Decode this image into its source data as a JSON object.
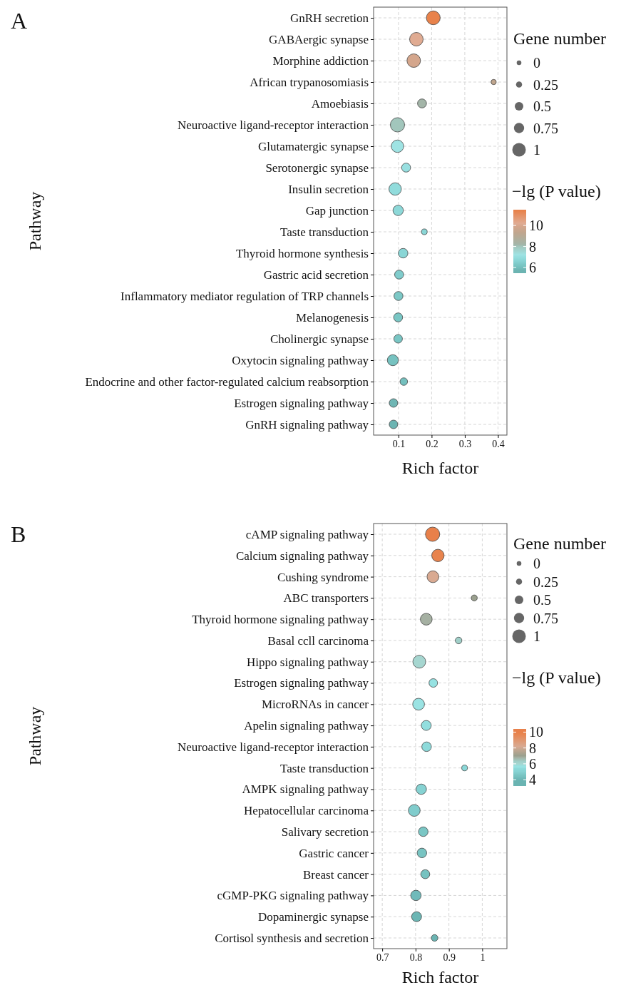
{
  "chart_data": [
    {
      "type": "bubble",
      "annotations": [
        "A"
      ],
      "orientation": "horizontal",
      "xlabel": "Rich factor",
      "ylabel": "Pathway",
      "legend_title": "Gene number",
      "clabel": "−lg (P value)",
      "grid": true,
      "categories": [
        "GnRH secretion",
        "GABAergic synapse",
        "Morphine addiction",
        "African trypanosomiasis",
        "Amoebiasis",
        "Neuroactive ligand-receptor interaction",
        "Glutamatergic synapse",
        "Serotonergic synapse",
        "Insulin secretion",
        "Gap junction",
        "Taste transduction",
        "Thyroid hormone synthesis",
        "Gastric acid secretion",
        "Inflammatory mediator regulation of TRP channels",
        "Melanogenesis",
        "Cholinergic synapse",
        "Oxytocin signaling pathway",
        "Endocrine and other factor-regulated calcium reabsorption",
        "Estrogen signaling pathway",
        "GnRH signaling pathway"
      ],
      "values": [
        0.205,
        0.154,
        0.146,
        0.387,
        0.171,
        0.097,
        0.097,
        0.123,
        0.09,
        0.099,
        0.178,
        0.114,
        0.102,
        0.1,
        0.099,
        0.099,
        0.083,
        0.116,
        0.085,
        0.085
      ],
      "sizes": [
        1.04,
        1.0,
        1.0,
        0.15,
        0.44,
        1.11,
        0.84,
        0.44,
        0.84,
        0.59,
        0.18,
        0.5,
        0.44,
        0.44,
        0.44,
        0.4,
        0.66,
        0.31,
        0.4,
        0.4
      ],
      "size_legend": [
        {
          "value": 0.12,
          "label": "0"
        },
        {
          "value": 0.2,
          "label": "0.25"
        },
        {
          "value": 0.4,
          "label": "0.5"
        },
        {
          "value": 0.57,
          "label": "0.75"
        },
        {
          "value": 1,
          "label": "1"
        }
      ],
      "cvalues": [
        11.4,
        10.2,
        9.9,
        9.3,
        8.2,
        8.0,
        7.2,
        7.1,
        6.9,
        6.8,
        6.7,
        6.7,
        6.4,
        6.3,
        6.2,
        6.2,
        6.1,
        6.0,
        5.8,
        5.7
      ],
      "colors": [
        "#e8824b",
        "#e0ab92",
        "#d4a68c",
        "#c0a68e",
        "#a3b5a8",
        "#a2c6bc",
        "#9fe3e3",
        "#98dfe0",
        "#91dcdc",
        "#8dd8d8",
        "#8ad6d6",
        "#8ad6d6",
        "#80cccc",
        "#7cc8c6",
        "#79c6c4",
        "#79c6c4",
        "#76c2c0",
        "#74c0be",
        "#6fb6b4",
        "#6cb4b2"
      ],
      "clim": [
        5.46,
        11.5
      ],
      "cticks": [
        6,
        8,
        10
      ],
      "xlim": [
        0.025,
        0.427
      ],
      "xticks": [
        0.1,
        0.2,
        0.3,
        0.4
      ]
    },
    {
      "type": "bubble",
      "annotations": [
        "B"
      ],
      "orientation": "horizontal",
      "xlabel": "Rich factor",
      "ylabel": "Pathway",
      "legend_title": "Gene number",
      "clabel": "−lg (P value)",
      "grid": true,
      "categories": [
        "cAMP signaling pathway",
        "Calcium signaling pathway",
        "Cushing syndrome",
        "ABC transporters",
        "Thyroid hormone signaling pathway",
        "Basal ccll carcinoma",
        "Hippo signaling pathway",
        "Estrogen signaling pathway",
        "MicroRNAs in cancer",
        "Apelin signaling pathway",
        "Neuroactive ligand-receptor interaction",
        "Taste transduction",
        "AMPK signaling pathway",
        "Hepatocellular carcinoma",
        "Salivary secretion",
        "Gastric cancer",
        "Breast cancer",
        "cGMP-PKG signaling pathway",
        "Dopaminergic synapse",
        "Cortisol synthesis and secretion"
      ],
      "values": [
        0.851,
        0.867,
        0.852,
        0.976,
        0.832,
        0.929,
        0.811,
        0.853,
        0.809,
        0.832,
        0.833,
        0.947,
        0.817,
        0.796,
        0.823,
        0.819,
        0.829,
        0.801,
        0.803,
        0.857
      ],
      "sizes": [
        1.11,
        0.84,
        0.76,
        0.2,
        0.76,
        0.24,
        0.9,
        0.4,
        0.76,
        0.54,
        0.5,
        0.18,
        0.59,
        0.76,
        0.5,
        0.5,
        0.44,
        0.59,
        0.54,
        0.24
      ],
      "size_legend": [
        {
          "value": 0.12,
          "label": "0"
        },
        {
          "value": 0.2,
          "label": "0.25"
        },
        {
          "value": 0.4,
          "label": "0.5"
        },
        {
          "value": 0.57,
          "label": "0.75"
        },
        {
          "value": 1,
          "label": "1"
        }
      ],
      "cvalues": [
        10.2,
        9.8,
        8.2,
        7.0,
        6.8,
        6.3,
        6.0,
        5.7,
        5.6,
        5.5,
        5.4,
        5.3,
        5.0,
        4.8,
        4.6,
        4.5,
        4.4,
        4.2,
        4.0,
        3.8
      ],
      "colors": [
        "#e8804a",
        "#e8844e",
        "#d9aa92",
        "#9aa08e",
        "#a5b0a2",
        "#a0cfc8",
        "#a6d6d0",
        "#96e2e2",
        "#9ae3e3",
        "#92dede",
        "#8ddada",
        "#8ad8d8",
        "#86d2d2",
        "#80cccc",
        "#7ac6c4",
        "#78c4c2",
        "#76c2c0",
        "#70baba",
        "#6cb6b4",
        "#6ab4b2"
      ],
      "clim": [
        3.2,
        10.4
      ],
      "cticks": [
        4,
        6,
        8,
        10
      ],
      "xlim": [
        0.674,
        1.074
      ],
      "xticks": [
        0.7,
        0.8,
        0.9,
        {
          "value": 1,
          "label": "1"
        }
      ]
    }
  ]
}
